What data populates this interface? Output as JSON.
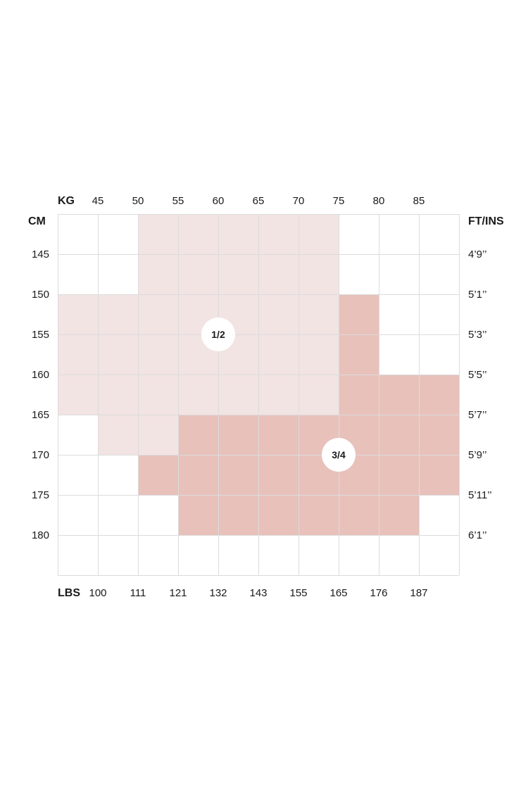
{
  "chart_data": {
    "type": "heatmap",
    "top_axis": {
      "title": "KG",
      "ticks": [
        "45",
        "50",
        "55",
        "60",
        "65",
        "70",
        "75",
        "80",
        "85"
      ]
    },
    "bottom_axis": {
      "title": "LBS",
      "ticks": [
        "100",
        "111",
        "121",
        "132",
        "143",
        "155",
        "165",
        "176",
        "187"
      ]
    },
    "left_axis": {
      "title": "CM",
      "ticks": [
        "145",
        "150",
        "155",
        "160",
        "165",
        "170",
        "175",
        "180"
      ]
    },
    "right_axis": {
      "title": "FT/INS",
      "ticks": [
        "4’9’’",
        "5’1’’",
        "5’3’’",
        "5’5’’",
        "5’7’’",
        "5’9’’",
        "5’11’’",
        "6’1’’"
      ]
    },
    "x_range_kg": [
      40,
      90
    ],
    "y_range_cm": [
      140,
      185
    ],
    "cell_step": 5,
    "sizes": [
      {
        "label": "1/2",
        "color": "#f2e4e3",
        "label_at": {
          "kg": 60,
          "cm": 155
        }
      },
      {
        "label": "3/4",
        "color": "#e8c1bb",
        "label_at": {
          "kg": 75,
          "cm": 170
        }
      }
    ],
    "matrix": [
      [
        null,
        null,
        "1/2",
        "1/2",
        "1/2",
        "1/2",
        "1/2",
        null,
        null,
        null
      ],
      [
        null,
        null,
        "1/2",
        "1/2",
        "1/2",
        "1/2",
        "1/2",
        null,
        null,
        null
      ],
      [
        "1/2",
        "1/2",
        "1/2",
        "1/2",
        "1/2",
        "1/2",
        "1/2",
        "3/4",
        null,
        null
      ],
      [
        "1/2",
        "1/2",
        "1/2",
        "1/2",
        "1/2",
        "1/2",
        "1/2",
        "3/4",
        null,
        null
      ],
      [
        "1/2",
        "1/2",
        "1/2",
        "1/2",
        "1/2",
        "1/2",
        "1/2",
        "3/4",
        "3/4",
        "3/4"
      ],
      [
        null,
        "1/2",
        "1/2",
        "3/4",
        "3/4",
        "3/4",
        "3/4",
        "3/4",
        "3/4",
        "3/4"
      ],
      [
        null,
        null,
        "3/4",
        "3/4",
        "3/4",
        "3/4",
        "3/4",
        "3/4",
        "3/4",
        "3/4"
      ],
      [
        null,
        null,
        null,
        "3/4",
        "3/4",
        "3/4",
        "3/4",
        "3/4",
        "3/4",
        null
      ],
      [
        null,
        null,
        null,
        null,
        null,
        null,
        null,
        null,
        null,
        null
      ]
    ],
    "grid": true,
    "grid_color": "#dcdcdc"
  }
}
